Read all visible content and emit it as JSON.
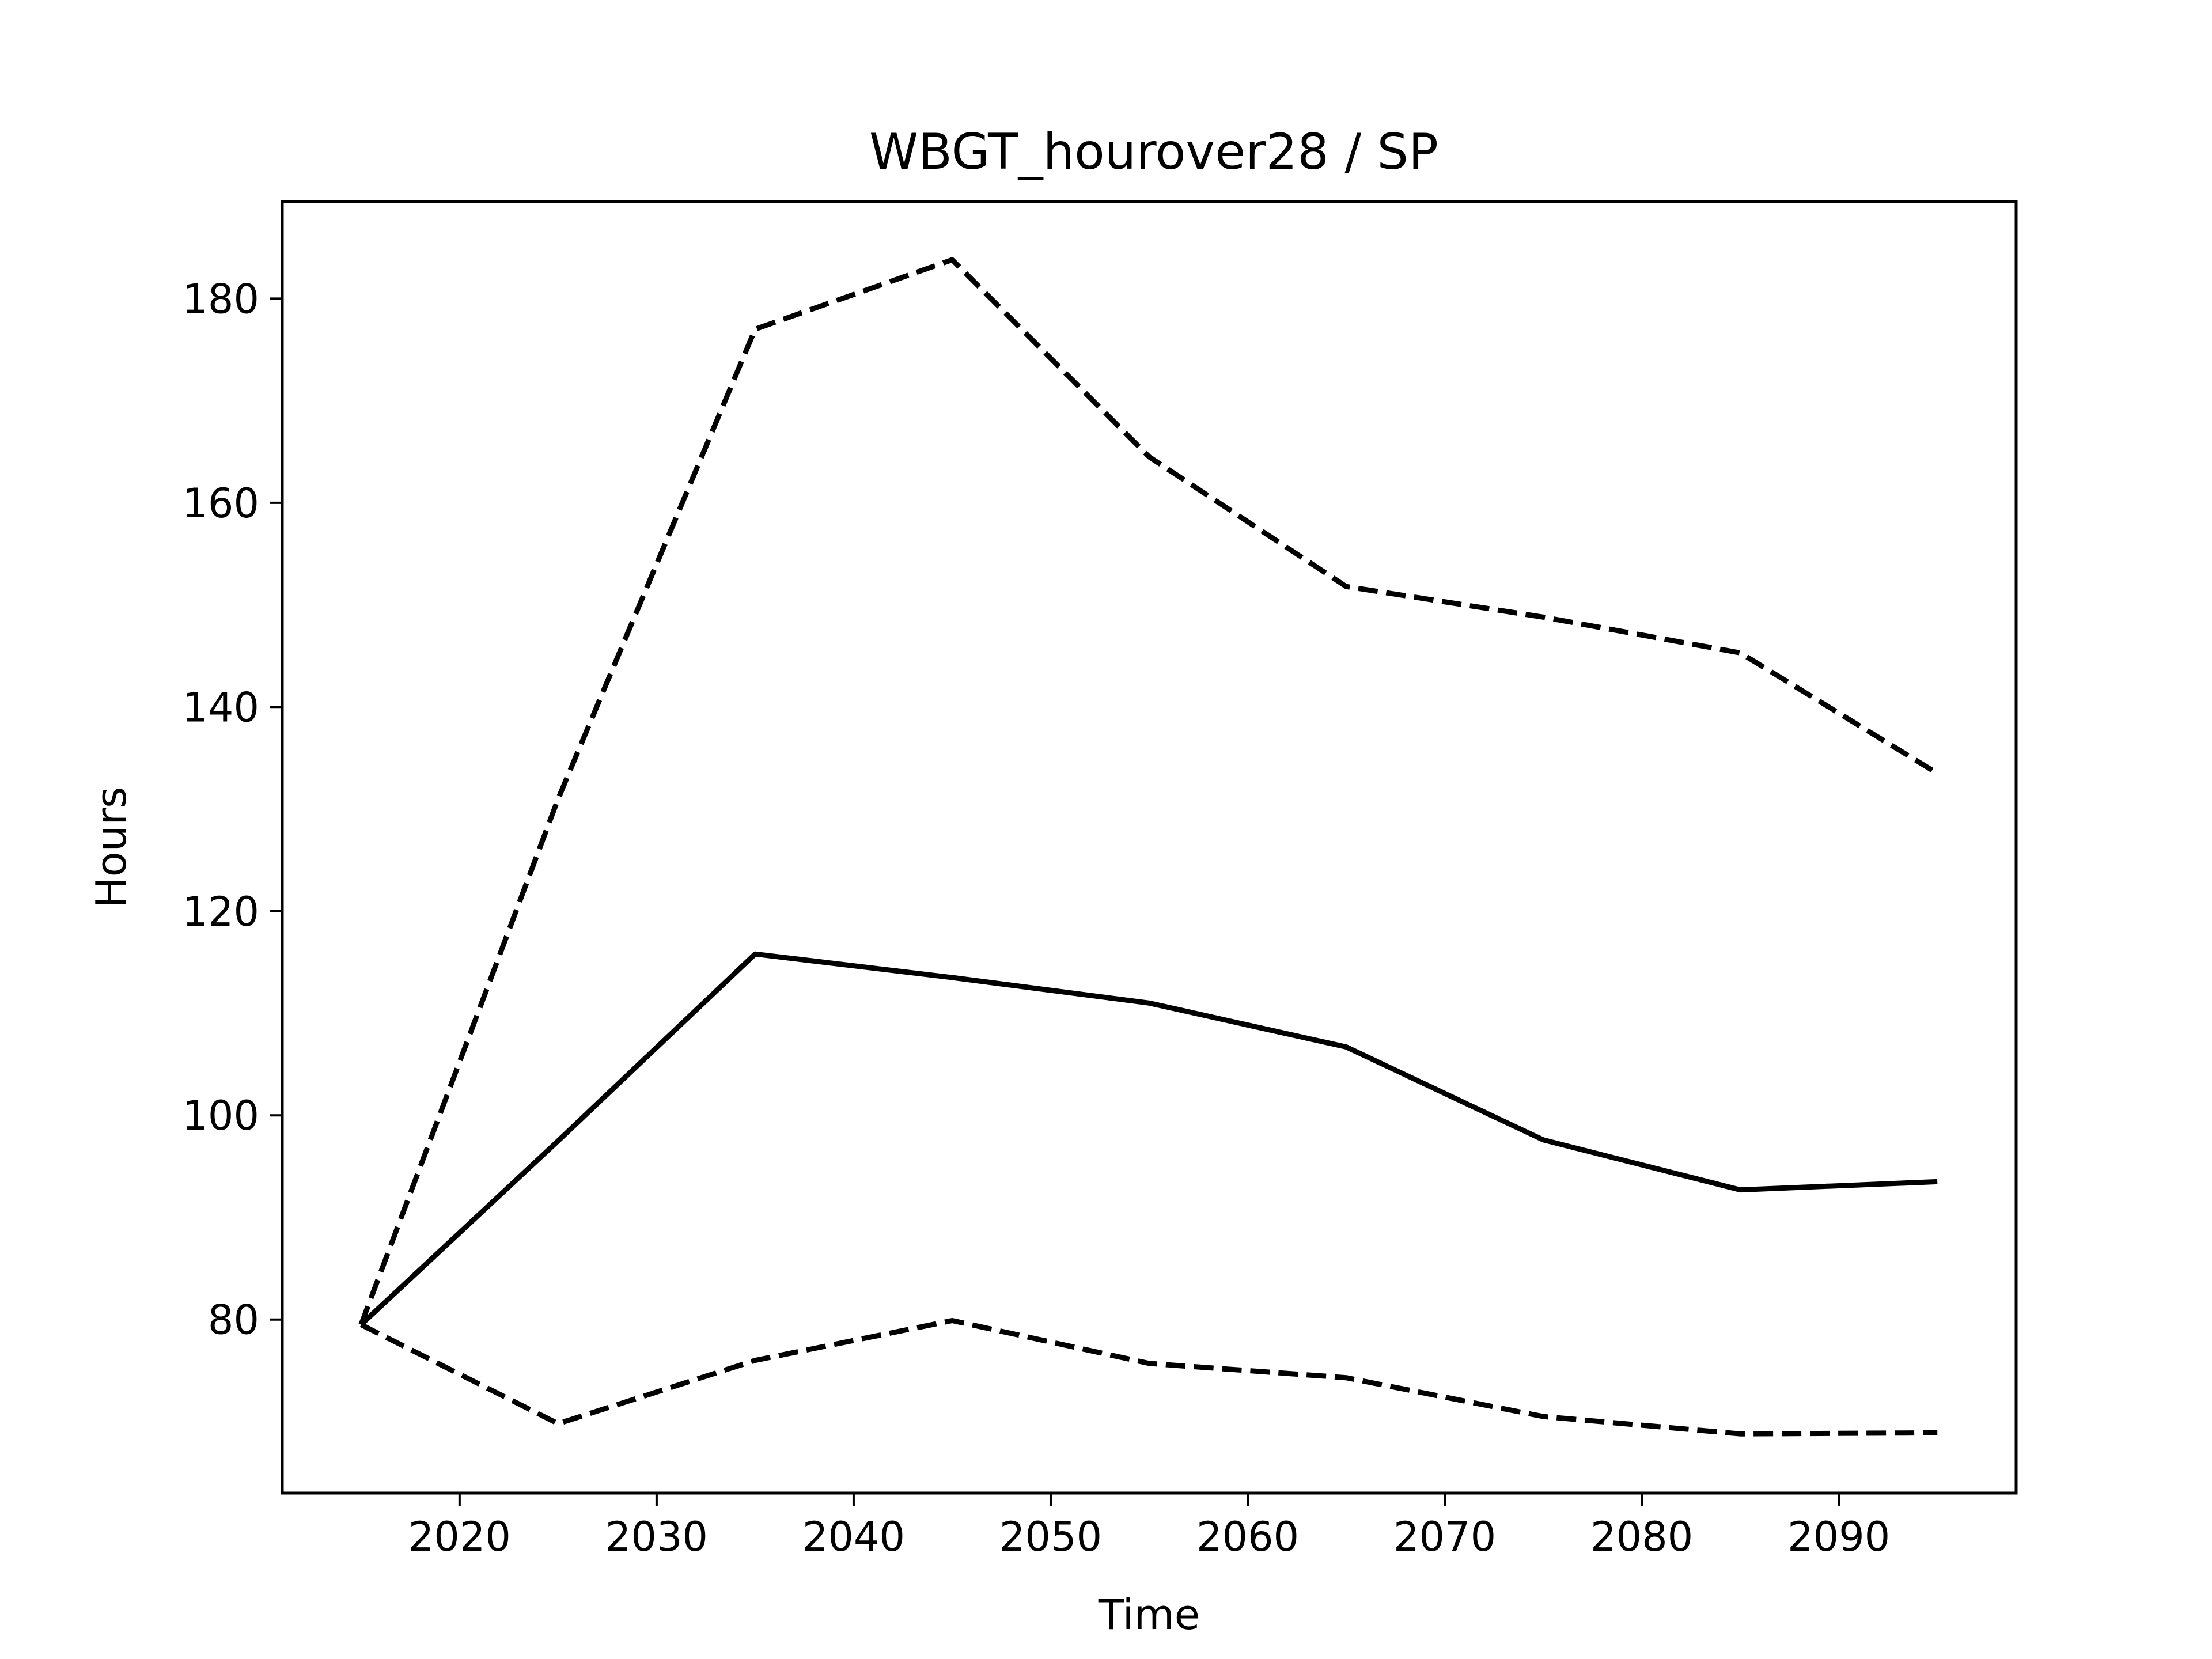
{
  "chart_data": {
    "type": "line",
    "title": "WBGT_hourover28 / SP",
    "xlabel": "Time",
    "ylabel": "Hours",
    "xlim": [
      2011,
      2099
    ],
    "ylim": [
      63,
      189.5
    ],
    "xticks": [
      2020,
      2030,
      2040,
      2050,
      2060,
      2070,
      2080,
      2090
    ],
    "yticks": [
      80,
      100,
      120,
      140,
      160,
      180
    ],
    "grid": false,
    "x": [
      2015,
      2025,
      2035,
      2045,
      2055,
      2065,
      2075,
      2085,
      2095
    ],
    "series": [
      {
        "values": [
          79.5,
          131.0,
          177.0,
          183.8,
          164.5,
          151.8,
          148.8,
          145.3,
          133.5
        ],
        "style": "dashed",
        "color": "#000000"
      },
      {
        "values": [
          79.5,
          97.5,
          115.8,
          113.5,
          111.0,
          106.7,
          97.6,
          92.7,
          93.5
        ],
        "style": "solid",
        "color": "#000000"
      },
      {
        "values": [
          79.5,
          69.8,
          76.0,
          79.9,
          75.7,
          74.3,
          70.5,
          68.8,
          68.9
        ],
        "style": "dashed",
        "color": "#000000"
      }
    ]
  }
}
